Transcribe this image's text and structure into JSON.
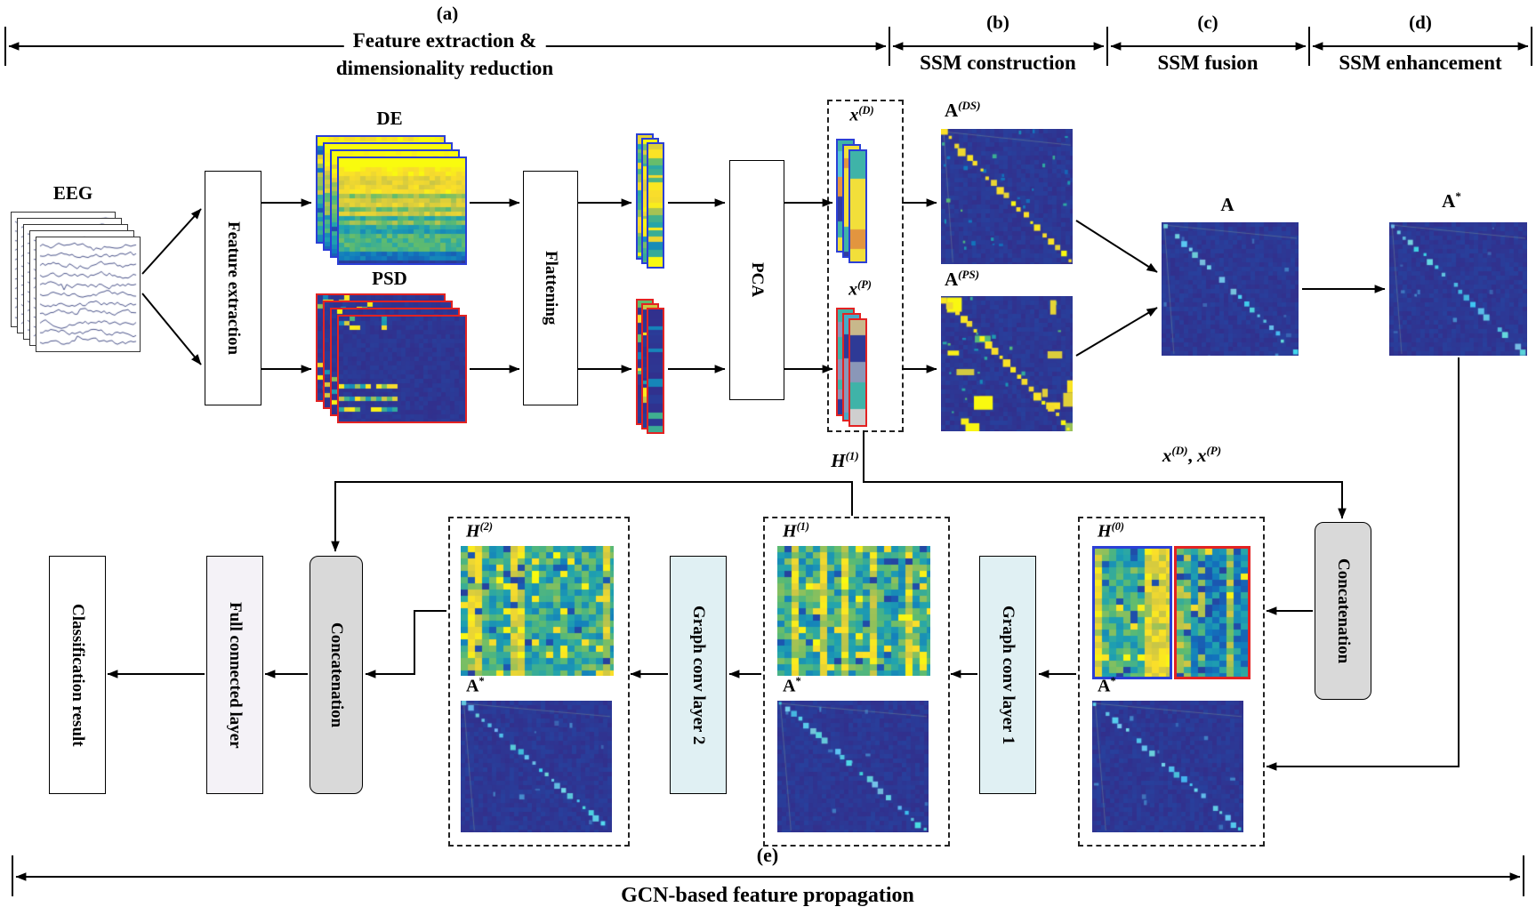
{
  "sections": {
    "a": {
      "tag": "(a)",
      "line1": "Feature extraction &",
      "line2": "dimensionality reduction"
    },
    "b": {
      "tag": "(b)",
      "label": "SSM construction"
    },
    "c": {
      "tag": "(c)",
      "label": "SSM fusion"
    },
    "d": {
      "tag": "(d)",
      "label": "SSM enhancement"
    },
    "e": {
      "tag": "(e)",
      "label": "GCN-based feature propagation"
    }
  },
  "boxes": {
    "feature_extraction": "Feature extraction",
    "flattening": "Flattening",
    "pca": "PCA",
    "concatenation_right": "Concatenation",
    "graph_conv_1": "Graph conv layer 1",
    "graph_conv_2": "Graph conv layer 2",
    "concatenation_left": "Concatenation",
    "full_connected": "Full connected layer",
    "classification": "Classification result"
  },
  "labels": {
    "eeg": "EEG",
    "de": "DE",
    "psd": "PSD",
    "x_d": {
      "base": "x",
      "sup": "(D)"
    },
    "x_p": {
      "base": "x",
      "sup": "(P)"
    },
    "a_ds": {
      "base": "A",
      "sup": "(DS)"
    },
    "a_ps": {
      "base": "A",
      "sup": "(PS)"
    },
    "a_fused": {
      "base": "A",
      "sup": ""
    },
    "a_star_top": {
      "base": "A",
      "sup": "*"
    },
    "xdxp": {
      "b1": "x",
      "s1": "(D)",
      "sep": ", ",
      "b2": "x",
      "s2": "(P)"
    },
    "h1_feedback": {
      "base": "H",
      "sup": "(1)"
    },
    "h0": {
      "base": "H",
      "sup": "(0)"
    },
    "h1": {
      "base": "H",
      "sup": "(1)"
    },
    "h2": {
      "base": "H",
      "sup": "(2)"
    },
    "a_star_h0": {
      "base": "A",
      "sup": "*"
    },
    "a_star_h1": {
      "base": "A",
      "sup": "*"
    },
    "a_star_h2": {
      "base": "A",
      "sup": "*"
    }
  },
  "colors": {
    "de_border": "#2b3fd6",
    "psd_border": "#e32222",
    "conv_layer_bg": "#e0f0f3",
    "concat_bg": "#d9d9d9",
    "fc_layer_bg": "#f4f2f7",
    "matrix_navy": "#352a87",
    "diag_yellow": "#f6ef33",
    "diag_cyan": "#4ec9e8",
    "eeg_trace": "#35407d"
  }
}
